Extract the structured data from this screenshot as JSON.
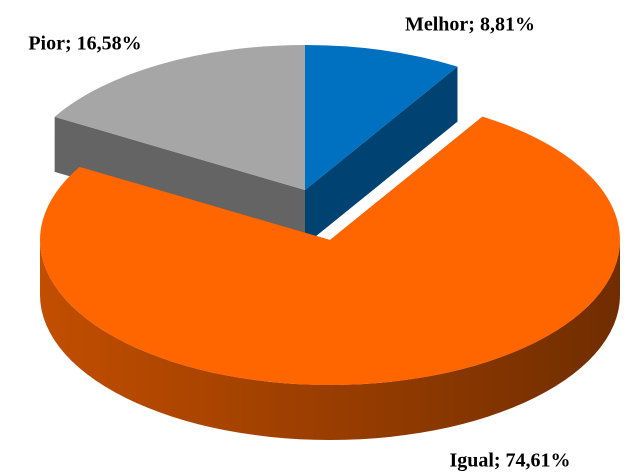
{
  "chart_data": {
    "type": "pie",
    "categories": [
      "Melhor",
      "Igual",
      "Pior"
    ],
    "values": [
      8.81,
      74.61,
      16.58
    ],
    "value_labels": [
      "Melhor; 8,81%",
      "Igual; 74,61%",
      "Pior; 16,58%"
    ],
    "colors": [
      "#0070c0",
      "#ff6600",
      "#a6a6a6"
    ]
  }
}
